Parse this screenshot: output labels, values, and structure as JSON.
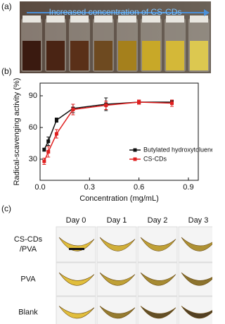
{
  "panel_labels": [
    "(a)",
    "(b)",
    "(c)"
  ],
  "panel_a": {
    "arrow_text": "Increased concentration of CS-CDs"
  },
  "chart_data": {
    "type": "line",
    "x_label": "Concentration (mg/mL)",
    "y_label": "Radical-scavenging activity (%)",
    "x": [
      0.025,
      0.05,
      0.1,
      0.2,
      0.4,
      0.6,
      0.8
    ],
    "series": [
      {
        "name": "Butylated hydroxytoluene",
        "color": "#111111",
        "values": [
          39,
          47,
          67,
          78,
          82,
          84,
          84
        ],
        "errors": [
          1.5,
          4,
          2,
          4,
          6,
          2,
          2
        ]
      },
      {
        "name": "CS-CDs",
        "color": "#e02020",
        "values": [
          28,
          37,
          54,
          77,
          81,
          84,
          83
        ],
        "errors": [
          3,
          5,
          4,
          5,
          4,
          2,
          3
        ]
      }
    ],
    "xlim": [
      0,
      0.96
    ],
    "ylim": [
      10,
      102
    ],
    "xticks": [
      {
        "value": 0,
        "label": "0.0"
      },
      0.3,
      0.6,
      0.9
    ],
    "yticks": [
      30,
      60,
      90
    ],
    "legend": "lower right"
  },
  "panel_c": {
    "days": [
      "Day 0",
      "Day 1",
      "Day 2",
      "Day 3"
    ],
    "rows": [
      [
        "CS-CDs",
        "/PVA"
      ],
      [
        "PVA"
      ],
      [
        "Blank"
      ]
    ]
  }
}
